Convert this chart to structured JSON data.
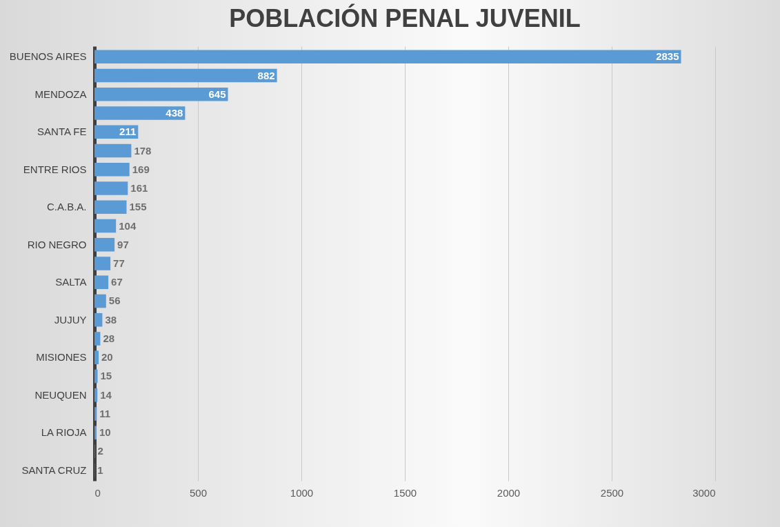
{
  "chart_data": {
    "type": "bar",
    "orientation": "horizontal",
    "title": "POBLACIÓN PENAL JUVENIL",
    "categories": [
      "BUENOS AIRES",
      null,
      "MENDOZA",
      null,
      "SANTA FE",
      null,
      "ENTRE RIOS",
      null,
      "C.A.B.A.",
      null,
      "RIO NEGRO",
      null,
      "SALTA",
      null,
      "JUJUY",
      null,
      "MISIONES",
      null,
      "NEUQUEN",
      null,
      "LA RIOJA",
      null,
      "SANTA CRUZ"
    ],
    "values": [
      2835,
      882,
      645,
      438,
      211,
      178,
      169,
      161,
      155,
      104,
      97,
      77,
      67,
      56,
      38,
      28,
      20,
      15,
      14,
      11,
      10,
      2,
      1
    ],
    "color": "#5b9bd5",
    "xlim": [
      0,
      3000
    ],
    "xticks": [
      0,
      500,
      1000,
      1500,
      2000,
      2500,
      3000
    ],
    "grid": "x",
    "data_labels": true
  }
}
